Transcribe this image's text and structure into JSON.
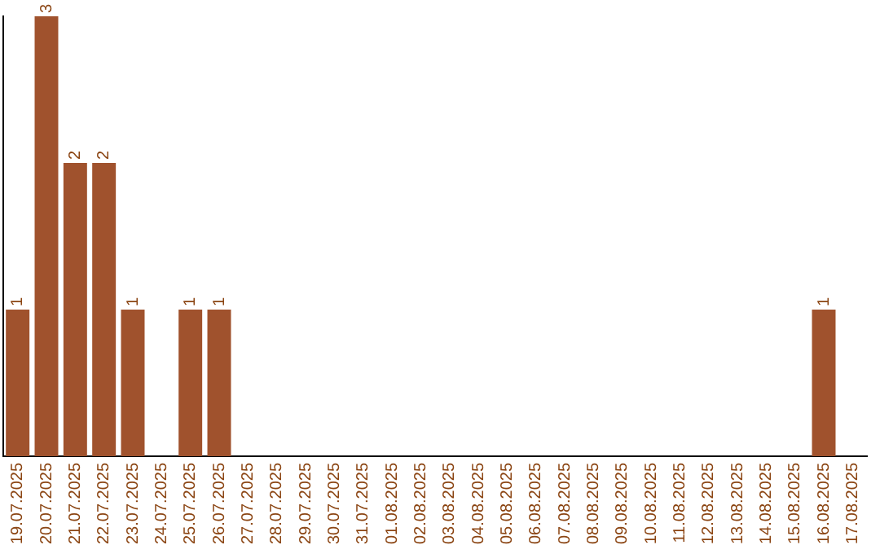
{
  "chart_data": {
    "type": "bar",
    "categories": [
      "19.07.2025",
      "20.07.2025",
      "21.07.2025",
      "22.07.2025",
      "23.07.2025",
      "24.07.2025",
      "25.07.2025",
      "26.07.2025",
      "27.07.2025",
      "28.07.2025",
      "29.07.2025",
      "30.07.2025",
      "31.07.2025",
      "01.08.2025",
      "02.08.2025",
      "03.08.2025",
      "04.08.2025",
      "05.08.2025",
      "06.08.2025",
      "07.08.2025",
      "08.08.2025",
      "09.08.2025",
      "10.08.2025",
      "11.08.2025",
      "12.08.2025",
      "13.08.2025",
      "14.08.2025",
      "15.08.2025",
      "16.08.2025",
      "17.08.2025"
    ],
    "values": [
      1,
      3,
      2,
      2,
      1,
      0,
      1,
      1,
      0,
      0,
      0,
      0,
      0,
      0,
      0,
      0,
      0,
      0,
      0,
      0,
      0,
      0,
      0,
      0,
      0,
      0,
      0,
      0,
      1,
      0
    ],
    "value_labels": [
      "1",
      "3",
      "2",
      "2",
      "1",
      null,
      "1",
      "1",
      null,
      null,
      null,
      null,
      null,
      null,
      null,
      null,
      null,
      null,
      null,
      null,
      null,
      null,
      null,
      null,
      null,
      null,
      null,
      null,
      "1",
      null
    ],
    "color": "#a0522d",
    "ylim": [
      0,
      3
    ],
    "tick_labels": "x"
  }
}
